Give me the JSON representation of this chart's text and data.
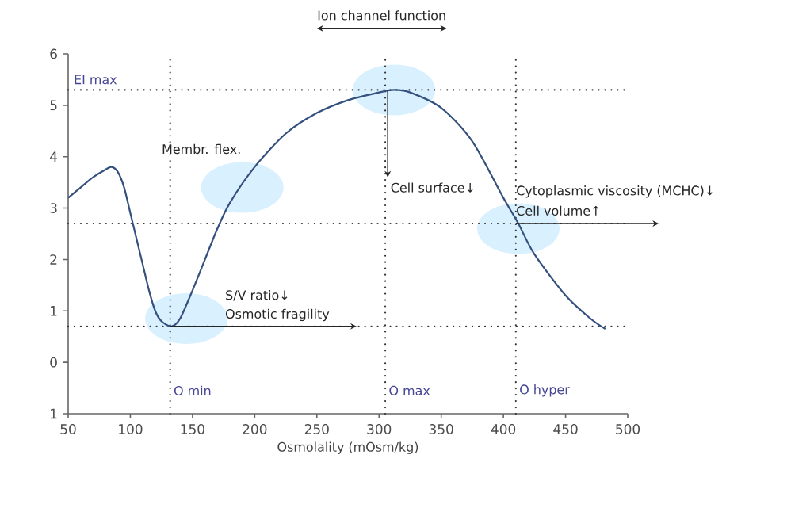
{
  "chart_data": {
    "type": "line",
    "xlabel": "Osmolality (mOsm/kg)",
    "xlim": [
      50,
      500
    ],
    "xticks": [
      50,
      100,
      150,
      200,
      250,
      300,
      350,
      400,
      450,
      500
    ],
    "ylim": [
      -1,
      6
    ],
    "yticks": [
      {
        "value": -1,
        "label": "1"
      },
      0,
      1,
      2,
      3,
      4,
      5,
      6
    ],
    "grid": false,
    "marker": "none",
    "line_style": "solid",
    "series": [
      {
        "color": "#34507e",
        "x": [
          50,
          60,
          70,
          80,
          85,
          90,
          95,
          100,
          105,
          110,
          115,
          120,
          125,
          133,
          140,
          150,
          160,
          170,
          180,
          200,
          225,
          250,
          275,
          300,
          312,
          325,
          350,
          375,
          400,
          412,
          425,
          450,
          470,
          482
        ],
        "values": [
          3.2,
          3.4,
          3.6,
          3.75,
          3.8,
          3.7,
          3.4,
          2.9,
          2.4,
          1.9,
          1.4,
          1.0,
          0.8,
          0.7,
          0.85,
          1.4,
          2.0,
          2.6,
          3.1,
          3.8,
          4.45,
          4.85,
          5.1,
          5.25,
          5.3,
          5.25,
          4.95,
          4.3,
          3.2,
          2.7,
          2.1,
          1.3,
          0.85,
          0.65
        ]
      }
    ],
    "ref_lines": [
      {
        "axis": "y",
        "value": 5.3,
        "label": "EI max",
        "color": "#333333",
        "line_style": "dotted"
      },
      {
        "axis": "y",
        "value": 2.7,
        "color": "#333333",
        "line_style": "dotted"
      },
      {
        "axis": "y",
        "value": 0.7,
        "color": "#333333",
        "line_style": "dotted"
      },
      {
        "axis": "x",
        "value": 132,
        "label": "O min",
        "color": "#333333",
        "line_style": "dotted"
      },
      {
        "axis": "x",
        "value": 305,
        "label": "O max",
        "color": "#333333",
        "line_style": "dotted"
      },
      {
        "axis": "x",
        "value": 410,
        "label": "O hyper",
        "color": "#333333",
        "line_style": "dotted"
      }
    ],
    "annotations": [
      "Ion channel function",
      "Membr. flex.",
      "S/V ratio↓",
      "Osmotic fragility",
      "Cell surface↓",
      "Cytoplasmic viscosity (MCHC)↓",
      "Cell volume↑"
    ]
  }
}
